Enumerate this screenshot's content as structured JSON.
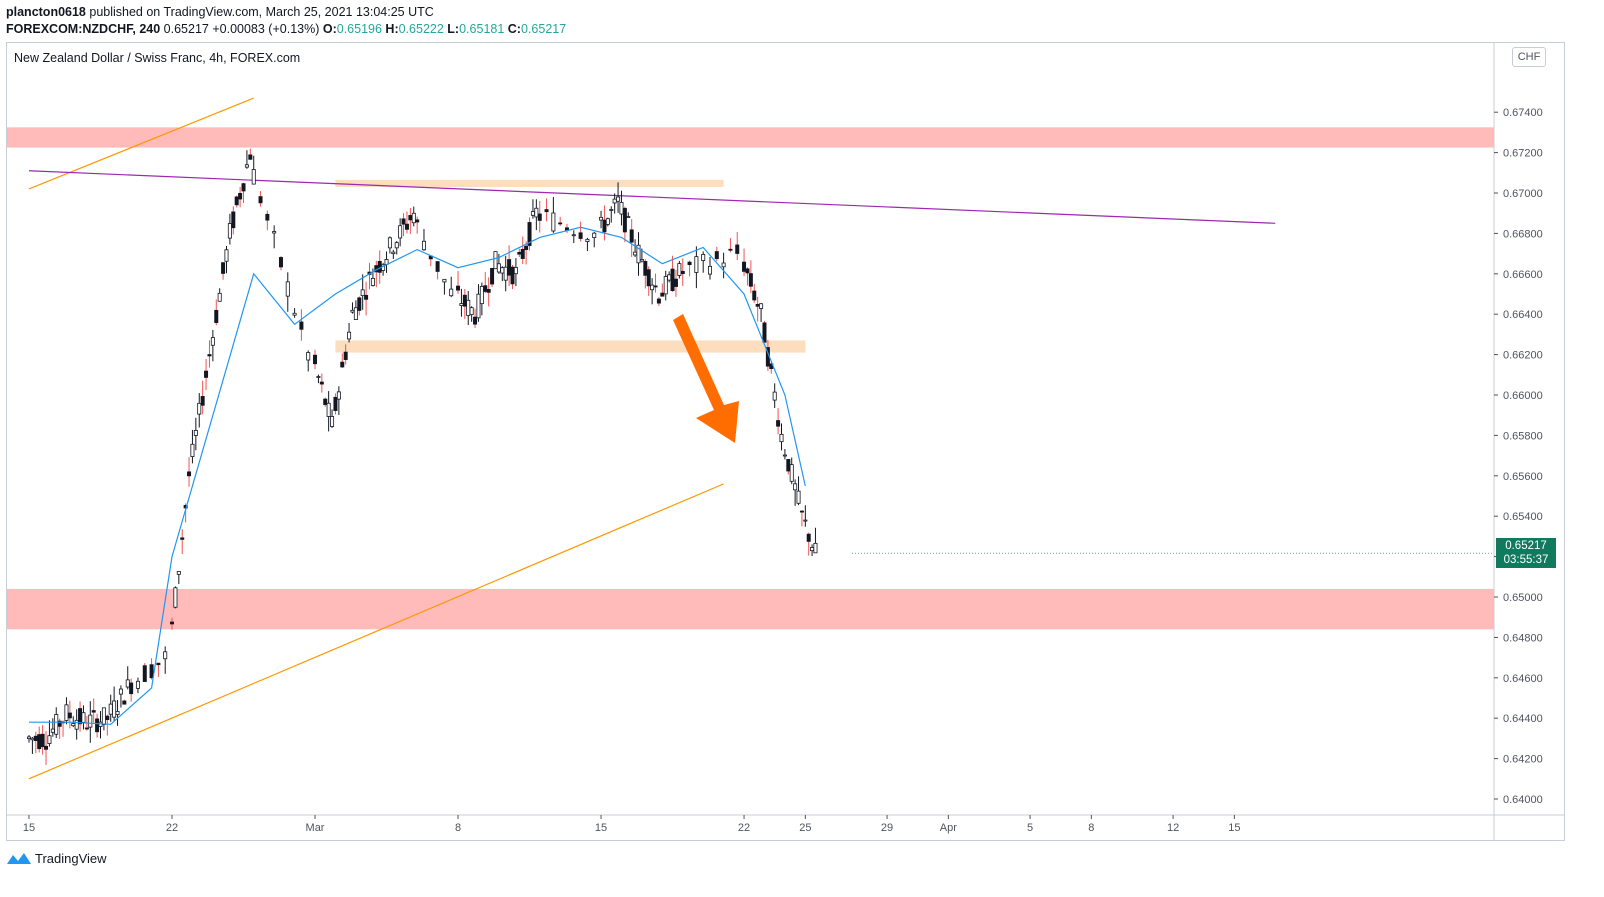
{
  "header": {
    "user": "plancton0618",
    "published_text": " published on TradingView.com, March 25, 2021 13:04:25 UTC",
    "symbol": "FOREXCOM:NZDCHF, 240",
    "last": "0.65217",
    "change": "+0.00083 (+0.13%)",
    "o_label": "O:",
    "o_value": "0.65196",
    "h_label": "H:",
    "h_value": "0.65222",
    "l_label": "L:",
    "l_value": "0.65181",
    "c_label": "C:",
    "c_value": "0.65217"
  },
  "series_title": "New Zealand Dollar / Swiss Franc, 4h, FOREX.com",
  "currency": "CHF",
  "price_tag": {
    "price": "0.65217",
    "countdown": "03:55:37"
  },
  "footer": {
    "brand": "TradingView"
  },
  "colors": {
    "up": "#26a69a",
    "down": "#ef5350",
    "candle_body_up": "#131722",
    "ma": "#2196f3",
    "zone_red": "#ffb3b3",
    "zone_orange": "#fcd9b6",
    "trend_orange": "#ff9800",
    "trend_purple": "#9c27b0",
    "arrow": "#ff6d00",
    "price_tag_bg": "#0f7a5d"
  },
  "chart_data": {
    "type": "candlestick",
    "title": "New Zealand Dollar / Swiss Franc, 4h, FOREX.com",
    "ylim": [
      0.6392,
      0.6762
    ],
    "y_ticks": [
      "0.67400",
      "0.67200",
      "0.67000",
      "0.66800",
      "0.66600",
      "0.66400",
      "0.66200",
      "0.66000",
      "0.65800",
      "0.65600",
      "0.65400",
      "0.65200",
      "0.65000",
      "0.64800",
      "0.64600",
      "0.64400",
      "0.64200",
      "0.64000"
    ],
    "x_ticks": [
      "15",
      "22",
      "Mar",
      "8",
      "15",
      "22",
      "25",
      "29",
      "Apr",
      "5",
      "8",
      "12",
      "15"
    ],
    "x_tick_dates": [
      "2021-02-15",
      "2021-02-22",
      "2021-03-01",
      "2021-03-08",
      "2021-03-15",
      "2021-03-22",
      "2021-03-25",
      "2021-03-29",
      "2021-04-01",
      "2021-04-05",
      "2021-04-08",
      "2021-04-12",
      "2021-04-15"
    ],
    "last_price": 0.65217,
    "grid": false,
    "closes_series": {
      "name": "",
      "dates": [
        "2021-02-15",
        "2021-02-16",
        "2021-02-17",
        "2021-02-18",
        "2021-02-19",
        "2021-02-20",
        "2021-02-22",
        "2021-02-23",
        "2021-02-24",
        "2021-02-25",
        "2021-02-26",
        "2021-03-01",
        "2021-03-02",
        "2021-03-03",
        "2021-03-04",
        "2021-03-05",
        "2021-03-06",
        "2021-03-08",
        "2021-03-09",
        "2021-03-10",
        "2021-03-11",
        "2021-03-12",
        "2021-03-15",
        "2021-03-16",
        "2021-03-17",
        "2021-03-18",
        "2021-03-19",
        "2021-03-22",
        "2021-03-23",
        "2021-03-24",
        "2021-03-25"
      ],
      "values": [
        0.643,
        0.6442,
        0.6438,
        0.644,
        0.6455,
        0.647,
        0.656,
        0.662,
        0.668,
        0.672,
        0.662,
        0.6585,
        0.664,
        0.666,
        0.6675,
        0.669,
        0.665,
        0.664,
        0.6665,
        0.666,
        0.669,
        0.668,
        0.6695,
        0.667,
        0.665,
        0.666,
        0.667,
        0.664,
        0.658,
        0.654,
        0.65217
      ]
    },
    "moving_average": {
      "dates": [
        "2021-02-15",
        "2021-02-17",
        "2021-02-19",
        "2021-02-21",
        "2021-02-22",
        "2021-02-24",
        "2021-02-26",
        "2021-02-28",
        "2021-03-02",
        "2021-03-04",
        "2021-03-06",
        "2021-03-08",
        "2021-03-10",
        "2021-03-12",
        "2021-03-14",
        "2021-03-16",
        "2021-03-18",
        "2021-03-20",
        "2021-03-22",
        "2021-03-24",
        "2021-03-25"
      ],
      "values": [
        0.6438,
        0.6438,
        0.6437,
        0.6455,
        0.652,
        0.659,
        0.666,
        0.6635,
        0.665,
        0.6662,
        0.6672,
        0.6663,
        0.6668,
        0.6678,
        0.6683,
        0.6678,
        0.6665,
        0.6673,
        0.665,
        0.66,
        0.6555
      ]
    },
    "zones": [
      {
        "from": 0.67225,
        "to": 0.67325,
        "color": "red"
      },
      {
        "from": 0.6484,
        "to": 0.6504,
        "color": "red"
      },
      {
        "from": 0.6703,
        "to": 0.67065,
        "color": "orange",
        "start": "2021-03-02",
        "end": "2021-03-21"
      },
      {
        "from": 0.6621,
        "to": 0.6627,
        "color": "orange",
        "start": "2021-03-02",
        "end": "2021-03-25"
      }
    ],
    "trendlines": [
      {
        "color": "orange",
        "start": [
          "2021-02-15",
          0.641
        ],
        "end": [
          "2021-03-21",
          0.6556
        ]
      },
      {
        "color": "orange",
        "start": [
          "2021-02-15",
          0.6702
        ],
        "end": [
          "2021-02-26",
          0.6747
        ]
      },
      {
        "color": "purple",
        "start": [
          "2021-02-15",
          0.6711
        ],
        "end": [
          "2021-04-17",
          0.6685
        ]
      }
    ]
  }
}
